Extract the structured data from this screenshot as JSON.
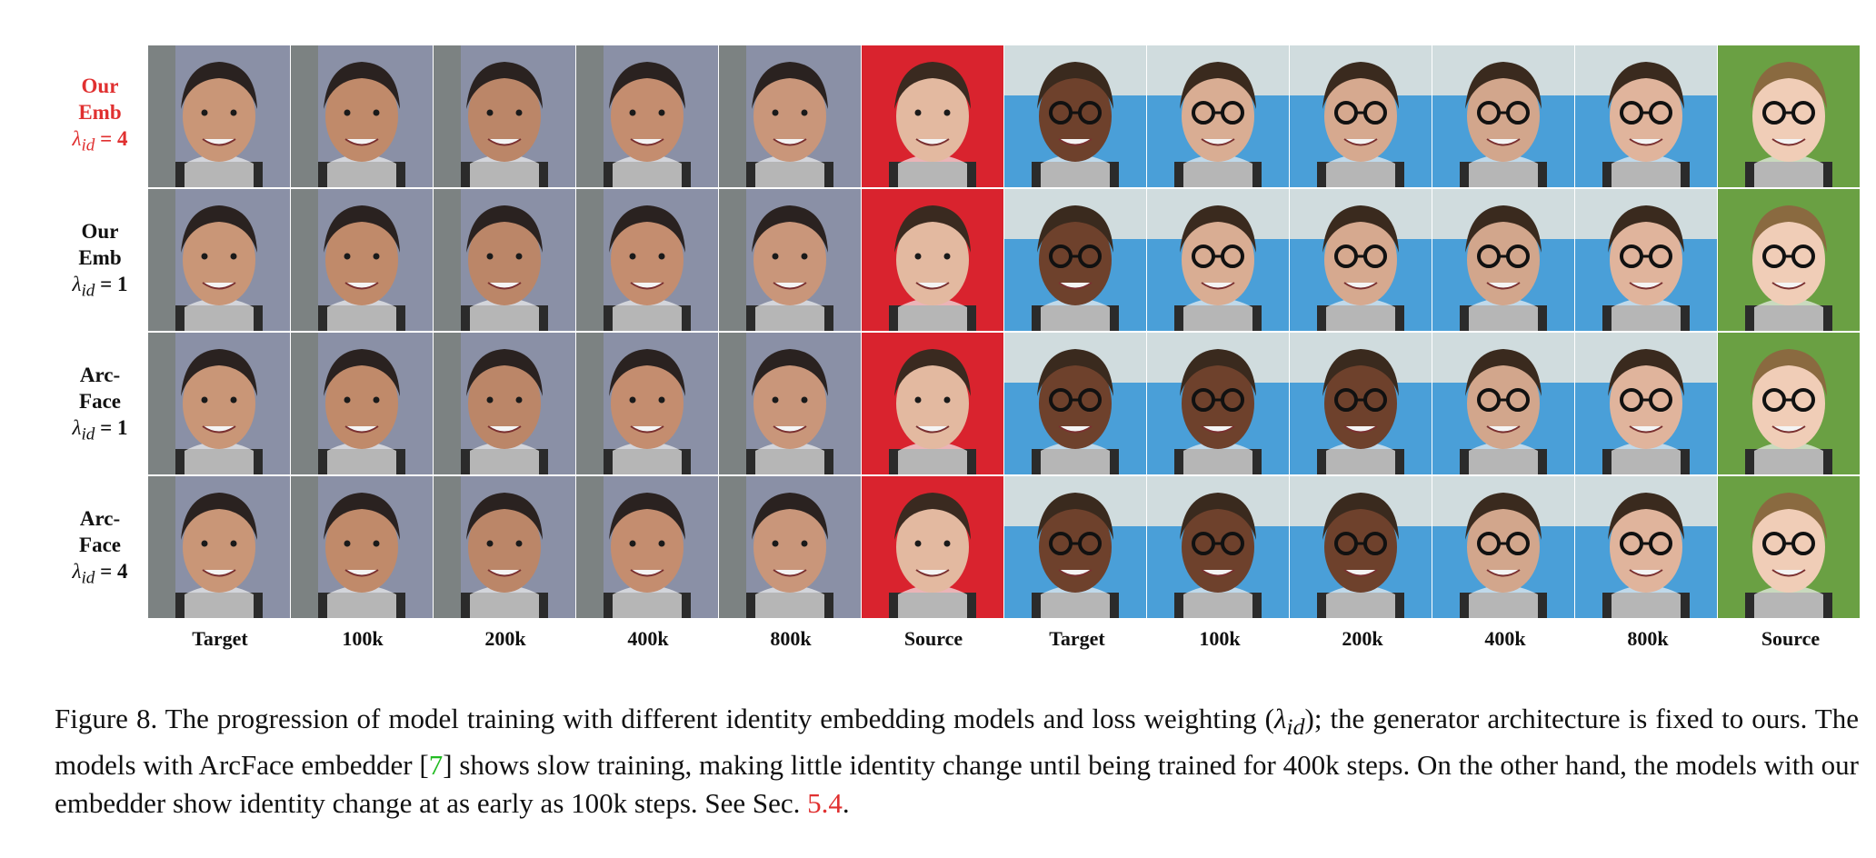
{
  "figure": {
    "row_labels": [
      {
        "line1": "Our",
        "line2": "Emb",
        "lambda": "λ",
        "sub": "id",
        "eq": " = 4",
        "color": "#e03030"
      },
      {
        "line1": "Our",
        "line2": "Emb",
        "lambda": "λ",
        "sub": "id",
        "eq": " = 1",
        "color": "#111111"
      },
      {
        "line1": "Arc-",
        "line2": "Face",
        "lambda": "λ",
        "sub": "id",
        "eq": " = 1",
        "color": "#111111"
      },
      {
        "line1": "Arc-",
        "line2": "Face",
        "lambda": "λ",
        "sub": "id",
        "eq": " = 4",
        "color": "#111111"
      }
    ],
    "column_labels": [
      "Target",
      "100k",
      "200k",
      "400k",
      "800k",
      "Source",
      "Target",
      "100k",
      "200k",
      "400k",
      "800k",
      "Source"
    ],
    "images": {
      "group1_target_bg": "#8a90a6",
      "group1_source_bg": "#d9232e",
      "group2_target_bg": "#4a9fd8",
      "group2_source_bg": "#6aa043"
    }
  },
  "caption": {
    "part1": "Figure 8. The progression of model training with different identity embedding models and loss weighting (",
    "lambda": "λ",
    "sub": "id",
    "part2": "); the generator architecture is fixed to ours. The models with ArcFace embedder [",
    "ref": "7",
    "part3": "] shows slow training, making little identity change until being trained for 400k steps. On the other hand, the models with our embedder show identity change at as early as 100k steps. See Sec. ",
    "sec": "5.4",
    "part4": "."
  }
}
